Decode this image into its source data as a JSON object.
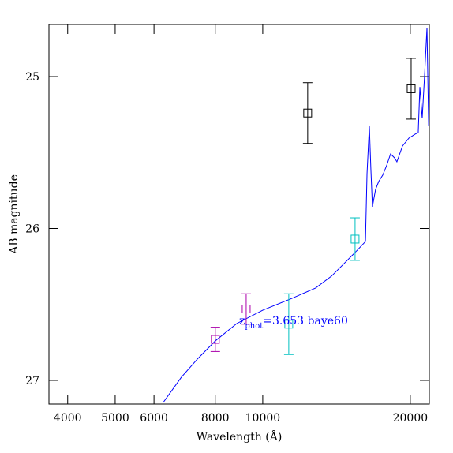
{
  "chart_data": {
    "type": "scatter",
    "xlabel": "Wavelength (Å)",
    "ylabel": "AB magnitude",
    "xscale": "log",
    "xlim": [
      3663,
      21870
    ],
    "ylim": [
      27.156,
      24.657
    ],
    "xticks": [
      4000,
      5000,
      6000,
      8000,
      10000,
      20000
    ],
    "yticks": [
      25,
      26,
      27
    ],
    "annotation": {
      "parts": [
        "z",
        "phot",
        "=3.653 baye60"
      ],
      "color": "#0000ff"
    },
    "series": [
      {
        "style": "line",
        "color": "#0000ff",
        "x": [
          6268,
          6824,
          7354,
          8003,
          8848,
          10000,
          11470,
          12820,
          13810,
          14600,
          15430,
          16200,
          16320,
          16500,
          16620,
          16740,
          16990,
          17240,
          17570,
          17890,
          18230,
          18570,
          18780,
          19280,
          19870,
          20460,
          20760,
          20920,
          21150,
          21390,
          21630,
          21800
        ],
        "values": [
          27.145,
          26.979,
          26.86,
          26.74,
          26.626,
          26.538,
          26.46,
          26.392,
          26.314,
          26.236,
          26.158,
          26.086,
          25.639,
          25.327,
          25.613,
          25.857,
          25.743,
          25.691,
          25.649,
          25.587,
          25.509,
          25.535,
          25.561,
          25.457,
          25.405,
          25.379,
          25.369,
          25.068,
          25.275,
          24.99,
          24.678,
          25.327
        ]
      },
      {
        "style": "errorbar",
        "color": "#aa00aa",
        "x": [
          8003,
          9252
        ],
        "values": [
          26.73,
          26.53
        ],
        "errors": [
          0.08,
          0.1
        ]
      },
      {
        "style": "errorbar",
        "color": "#00c0c0",
        "x": [
          11300,
          15430
        ],
        "values": [
          26.63,
          26.07
        ],
        "errors": [
          0.2,
          0.14
        ]
      },
      {
        "style": "errorbar",
        "color": "#000000",
        "x": [
          12350,
          20080
        ],
        "values": [
          25.24,
          25.08
        ],
        "errors": [
          0.2,
          0.2
        ]
      }
    ]
  }
}
